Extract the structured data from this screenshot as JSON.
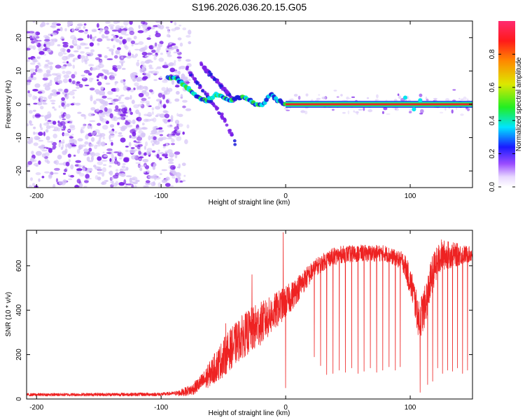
{
  "figure": {
    "title": "S196.2026.036.20.15.G05"
  },
  "colors": {
    "snr_line": "#ee2222",
    "blob_dark": "#7b1fe8",
    "blob_light": "#d7c6f7",
    "trace_core": "#e8242b",
    "trace_green": "#2ee62e",
    "trace_cyan": "#00e5ee",
    "trace_blue": "#1b1bd9"
  },
  "chart_data": [
    {
      "type": "heatmap",
      "name": "spectrogram",
      "title": "S196.2026.036.20.15.G05",
      "xlabel": "Height of straight line (km)",
      "ylabel": "Frequency (Hz)",
      "xlim": [
        -208,
        150
      ],
      "ylim": [
        -25,
        25
      ],
      "xticks": [
        -200,
        -100,
        0,
        100
      ],
      "xtick_labels": [
        "-200",
        "-100",
        "0",
        "100"
      ],
      "yticks": [
        -20,
        -10,
        0,
        10,
        20
      ],
      "ytick_labels": [
        "-20",
        "-10",
        "0",
        "10",
        "20"
      ],
      "colorbar": {
        "label": "Normalized spectral amplitude",
        "range": [
          0,
          1
        ],
        "ticks": [
          0.0,
          0.2,
          0.4,
          0.6,
          0.8
        ],
        "tick_labels": [
          "0.0",
          "0.2",
          "0.4",
          "0.6",
          "0.8"
        ]
      },
      "features": {
        "noise_region_km": [
          -208,
          -85
        ],
        "main_trace": [
          {
            "x": -95,
            "f": 8
          },
          {
            "x": -88,
            "f": 8
          },
          {
            "x": -82,
            "f": 6
          },
          {
            "x": -76,
            "f": 4
          },
          {
            "x": -70,
            "f": 2
          },
          {
            "x": -63,
            "f": 1
          },
          {
            "x": -56,
            "f": 3
          },
          {
            "x": -50,
            "f": 2
          },
          {
            "x": -44,
            "f": 1
          },
          {
            "x": -38,
            "f": 2
          },
          {
            "x": -32,
            "f": 2
          },
          {
            "x": -25,
            "f": 0
          },
          {
            "x": -18,
            "f": 0
          },
          {
            "x": -12,
            "f": 3
          },
          {
            "x": -6,
            "f": 1
          },
          {
            "x": 0,
            "f": 0
          },
          {
            "x": 150,
            "f": 0
          }
        ],
        "side_branches": [
          [
            {
              "x": -80,
              "f": 11
            },
            {
              "x": -70,
              "f": 6
            },
            {
              "x": -60,
              "f": 1
            },
            {
              "x": -50,
              "f": -4
            },
            {
              "x": -40,
              "f": -12
            }
          ],
          [
            {
              "x": -68,
              "f": 12
            },
            {
              "x": -58,
              "f": 8
            },
            {
              "x": -48,
              "f": 4
            },
            {
              "x": -40,
              "f": 0
            }
          ]
        ]
      }
    },
    {
      "type": "line",
      "name": "snr",
      "xlabel": "Height of straight line (km)",
      "ylabel": "SNR (10 * v/v)",
      "xlim": [
        -208,
        150
      ],
      "ylim": [
        0,
        760
      ],
      "xticks": [
        -200,
        -100,
        0,
        100
      ],
      "xtick_labels": [
        "-200",
        "-100",
        "0",
        "100"
      ],
      "yticks": [
        0,
        200,
        400,
        600
      ],
      "ytick_labels": [
        "0",
        "200",
        "400",
        "600"
      ],
      "envelope": [
        {
          "x": -208,
          "y": 20
        },
        {
          "x": -100,
          "y": 22
        },
        {
          "x": -85,
          "y": 28
        },
        {
          "x": -75,
          "y": 45
        },
        {
          "x": -65,
          "y": 90
        },
        {
          "x": -55,
          "y": 160
        },
        {
          "x": -45,
          "y": 230
        },
        {
          "x": -35,
          "y": 290
        },
        {
          "x": -25,
          "y": 330
        },
        {
          "x": -15,
          "y": 370
        },
        {
          "x": -5,
          "y": 420
        },
        {
          "x": 5,
          "y": 470
        },
        {
          "x": 15,
          "y": 540
        },
        {
          "x": 25,
          "y": 600
        },
        {
          "x": 35,
          "y": 640
        },
        {
          "x": 45,
          "y": 655
        },
        {
          "x": 60,
          "y": 660
        },
        {
          "x": 80,
          "y": 660
        },
        {
          "x": 95,
          "y": 620
        },
        {
          "x": 102,
          "y": 500
        },
        {
          "x": 107,
          "y": 360
        },
        {
          "x": 112,
          "y": 430
        },
        {
          "x": 118,
          "y": 580
        },
        {
          "x": 125,
          "y": 655
        },
        {
          "x": 150,
          "y": 655
        }
      ],
      "noise_amplitude": [
        {
          "x": -208,
          "y": 8
        },
        {
          "x": -90,
          "y": 10
        },
        {
          "x": -70,
          "y": 40
        },
        {
          "x": -50,
          "y": 110
        },
        {
          "x": -25,
          "y": 130
        },
        {
          "x": 0,
          "y": 90
        },
        {
          "x": 25,
          "y": 50
        },
        {
          "x": 90,
          "y": 45
        },
        {
          "x": 110,
          "y": 120
        },
        {
          "x": 150,
          "y": 40
        }
      ],
      "spikes_up": [
        {
          "x": -48,
          "y": 340
        },
        {
          "x": -27,
          "y": 560
        },
        {
          "x": -2,
          "y": 750
        }
      ],
      "dropouts": [
        {
          "x": 0,
          "y": 50
        },
        {
          "x": 23,
          "y": 190
        },
        {
          "x": 28,
          "y": 150
        },
        {
          "x": 33,
          "y": 110
        },
        {
          "x": 38,
          "y": 115
        },
        {
          "x": 43,
          "y": 130
        },
        {
          "x": 48,
          "y": 120
        },
        {
          "x": 53,
          "y": 140
        },
        {
          "x": 58,
          "y": 115
        },
        {
          "x": 63,
          "y": 125
        },
        {
          "x": 68,
          "y": 140
        },
        {
          "x": 73,
          "y": 120
        },
        {
          "x": 78,
          "y": 130
        },
        {
          "x": 83,
          "y": 145
        },
        {
          "x": 88,
          "y": 130
        },
        {
          "x": 92,
          "y": 145
        },
        {
          "x": 108,
          "y": 30
        },
        {
          "x": 114,
          "y": 65
        },
        {
          "x": 118,
          "y": 80
        },
        {
          "x": 122,
          "y": 140
        },
        {
          "x": 126,
          "y": 115
        },
        {
          "x": 130,
          "y": 130
        },
        {
          "x": 134,
          "y": 125
        },
        {
          "x": 138,
          "y": 140
        },
        {
          "x": 142,
          "y": 115
        },
        {
          "x": 146,
          "y": 130
        }
      ]
    }
  ]
}
